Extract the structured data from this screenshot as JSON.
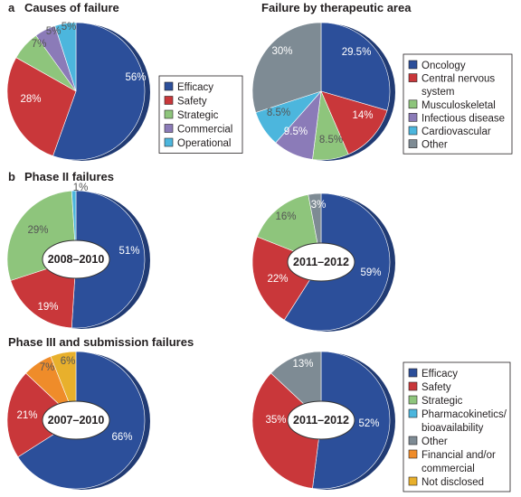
{
  "panel_labels": {
    "a": "a",
    "b": "b"
  },
  "headings": {
    "causes": "Causes of failure",
    "therapeutic": "Failure by therapeutic area",
    "phase2": "Phase II failures",
    "phase3": "Phase III and submission failures"
  },
  "colors": {
    "efficacy": "#2c4f9a",
    "safety": "#c9373a",
    "strategic": "#8ec57c",
    "commercial": "#8b7bb8",
    "operational": "#4cb6dd",
    "other": "#7e8b94",
    "financial": "#ef8c2a",
    "not_disclosed": "#e8b02c"
  },
  "legends": {
    "causes": [
      "Efficacy",
      "Safety",
      "Strategic",
      "Commercial",
      "Operational"
    ],
    "therapeutic": [
      "Oncology",
      "Central nervous system",
      "Musculoskeletal",
      "Infectious disease",
      "Cardiovascular",
      "Other"
    ],
    "phases": [
      "Efficacy",
      "Safety",
      "Strategic",
      "Pharmacokinetics/ bioavailability",
      "Other",
      "Financial and/or commercial",
      "Not disclosed"
    ]
  },
  "chart_data": [
    {
      "type": "pie",
      "title": "Causes of failure",
      "categories": [
        "Efficacy",
        "Safety",
        "Strategic",
        "Commercial",
        "Operational"
      ],
      "values": [
        56,
        28,
        7,
        5,
        5
      ],
      "labels": [
        "56%",
        "28%",
        "7%",
        "5%",
        "5%"
      ]
    },
    {
      "type": "pie",
      "title": "Failure by therapeutic area",
      "categories": [
        "Oncology",
        "Central nervous system",
        "Musculoskeletal",
        "Infectious disease",
        "Cardiovascular",
        "Other"
      ],
      "values": [
        29.5,
        14,
        8.5,
        9.5,
        8.5,
        30
      ],
      "labels": [
        "29.5%",
        "14%",
        "8.5%",
        "9.5%",
        "8.5%",
        "30%"
      ]
    },
    {
      "type": "pie",
      "title": "Phase II failures",
      "center_label": "2008–2010",
      "categories": [
        "Efficacy",
        "Safety",
        "Strategic",
        "Pharmacokinetics/ bioavailability"
      ],
      "values": [
        51,
        19,
        29,
        1
      ],
      "labels": [
        "51%",
        "19%",
        "29%",
        "1%"
      ]
    },
    {
      "type": "pie",
      "title": "Phase II failures",
      "center_label": "2011–2012",
      "categories": [
        "Efficacy",
        "Safety",
        "Strategic",
        "Other"
      ],
      "values": [
        59,
        22,
        16,
        3
      ],
      "labels": [
        "59%",
        "22%",
        "16%",
        "3%"
      ]
    },
    {
      "type": "pie",
      "title": "Phase III and submission failures",
      "center_label": "2007–2010",
      "categories": [
        "Efficacy",
        "Safety",
        "Financial and/or commercial",
        "Not disclosed"
      ],
      "values": [
        66,
        21,
        7,
        6
      ],
      "labels": [
        "66%",
        "21%",
        "7%",
        "6%"
      ]
    },
    {
      "type": "pie",
      "title": "Phase III and submission failures",
      "center_label": "2011–2012",
      "categories": [
        "Efficacy",
        "Safety",
        "Other"
      ],
      "values": [
        52,
        35,
        13
      ],
      "labels": [
        "52%",
        "35%",
        "13%"
      ]
    }
  ]
}
